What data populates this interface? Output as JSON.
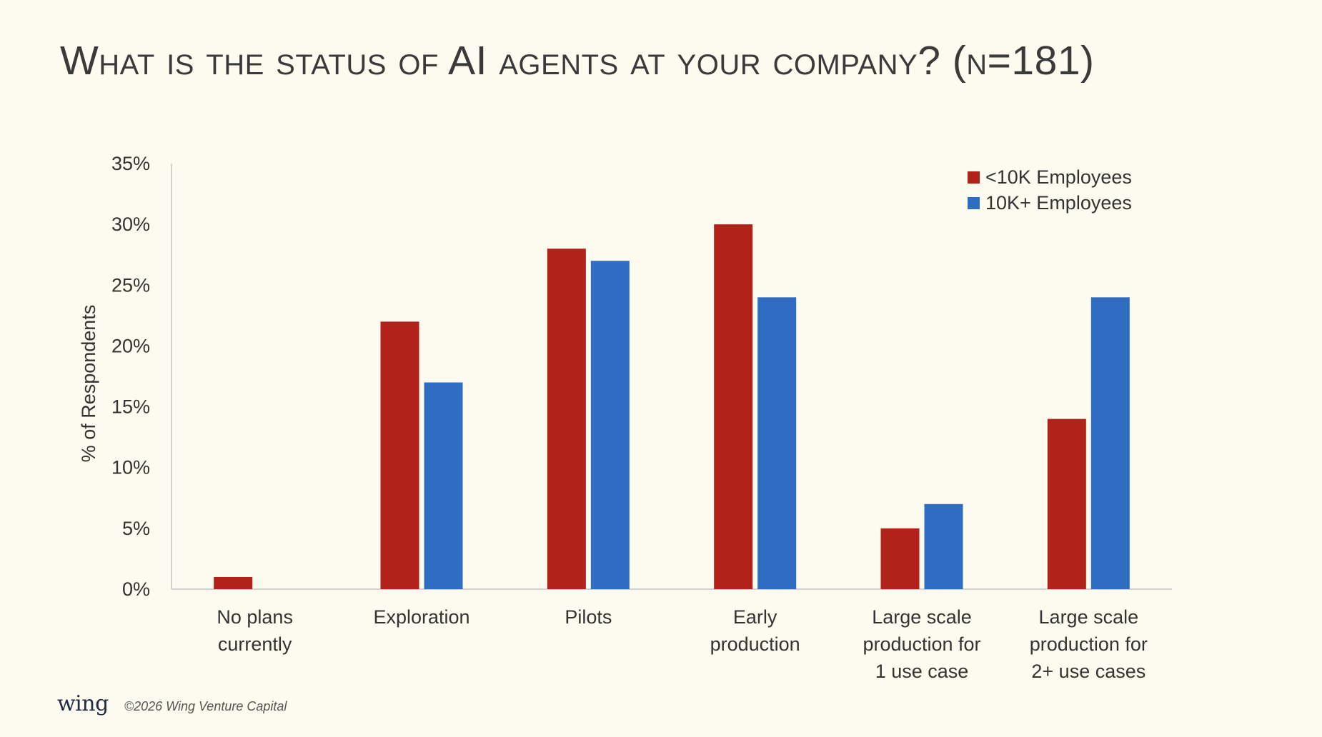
{
  "title": "What is the status of AI agents at your company? (n=181)",
  "colors": {
    "small": "#b1231a",
    "large": "#2f6dc3",
    "axis": "#d0d0d0",
    "text": "#333333"
  },
  "footer": {
    "logo": "wing",
    "copyright": "©2026 Wing Venture Capital"
  },
  "chart_data": {
    "type": "bar",
    "title": "What is the status of AI agents at your company? (n=181)",
    "xlabel": "",
    "ylabel": "% of Respondents",
    "ylim": [
      0,
      35
    ],
    "yticks": [
      "0%",
      "5%",
      "10%",
      "15%",
      "20%",
      "25%",
      "30%",
      "35%"
    ],
    "grid": false,
    "legend": "top-right",
    "categories": [
      [
        "No plans",
        "currently"
      ],
      [
        "Exploration"
      ],
      [
        "Pilots"
      ],
      [
        "Early",
        "production"
      ],
      [
        "Large scale",
        "production for",
        "1 use case"
      ],
      [
        "Large scale",
        "production for",
        "2+ use cases"
      ]
    ],
    "series": [
      {
        "name": "<10K Employees",
        "color": "#b1231a",
        "values": [
          1,
          22,
          28,
          30,
          5,
          14
        ]
      },
      {
        "name": "10K+ Employees",
        "color": "#2f6dc3",
        "values": [
          0,
          17,
          27,
          24,
          7,
          24
        ]
      }
    ]
  }
}
